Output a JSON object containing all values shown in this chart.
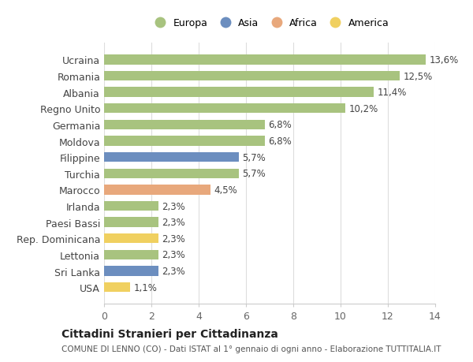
{
  "categories": [
    "Ucraina",
    "Romania",
    "Albania",
    "Regno Unito",
    "Germania",
    "Moldova",
    "Filippine",
    "Turchia",
    "Marocco",
    "Irlanda",
    "Paesi Bassi",
    "Rep. Dominicana",
    "Lettonia",
    "Sri Lanka",
    "USA"
  ],
  "values": [
    13.6,
    12.5,
    11.4,
    10.2,
    6.8,
    6.8,
    5.7,
    5.7,
    4.5,
    2.3,
    2.3,
    2.3,
    2.3,
    2.3,
    1.1
  ],
  "labels": [
    "13,6%",
    "12,5%",
    "11,4%",
    "10,2%",
    "6,8%",
    "6,8%",
    "5,7%",
    "5,7%",
    "4,5%",
    "2,3%",
    "2,3%",
    "2,3%",
    "2,3%",
    "2,3%",
    "1,1%"
  ],
  "continent": [
    "Europa",
    "Europa",
    "Europa",
    "Europa",
    "Europa",
    "Europa",
    "Asia",
    "Europa",
    "Africa",
    "Europa",
    "Europa",
    "America",
    "Europa",
    "Asia",
    "America"
  ],
  "colors": {
    "Europa": "#a8c37f",
    "Asia": "#6c8ebf",
    "Africa": "#e8a87c",
    "America": "#f0d060"
  },
  "legend_order": [
    "Europa",
    "Asia",
    "Africa",
    "America"
  ],
  "title": "Cittadini Stranieri per Cittadinanza",
  "subtitle": "COMUNE DI LENNO (CO) - Dati ISTAT al 1° gennaio di ogni anno - Elaborazione TUTTITALIA.IT",
  "xlim": [
    0,
    14
  ],
  "xticks": [
    0,
    2,
    4,
    6,
    8,
    10,
    12,
    14
  ],
  "background_color": "#ffffff",
  "bar_height": 0.6,
  "grid_color": "#dddddd"
}
